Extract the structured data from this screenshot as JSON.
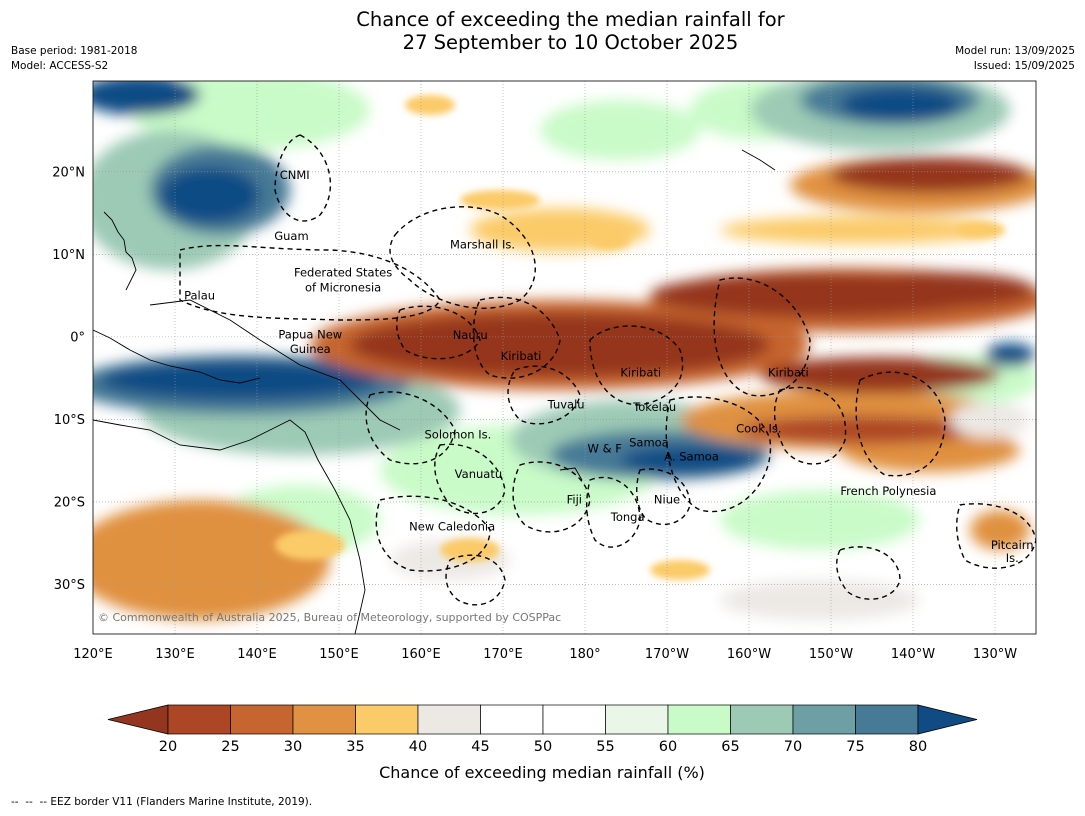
{
  "title": {
    "line1": "Chance of exceeding the median rainfall for",
    "line2": "27 September to 10 October 2025"
  },
  "meta": {
    "base_period": "Base period: 1981-2018",
    "model": "Model: ACCESS-S2",
    "model_run": "Model run: 13/09/2025",
    "issued": "Issued: 15/09/2025"
  },
  "map": {
    "extent": {
      "lon": [
        120,
        235
      ],
      "lat": [
        -36,
        31
      ]
    },
    "x_ticks": [
      {
        "lon": 120,
        "label": "120°E"
      },
      {
        "lon": 130,
        "label": "130°E"
      },
      {
        "lon": 140,
        "label": "140°E"
      },
      {
        "lon": 150,
        "label": "150°E"
      },
      {
        "lon": 160,
        "label": "160°E"
      },
      {
        "lon": 170,
        "label": "170°E"
      },
      {
        "lon": 180,
        "label": "180°"
      },
      {
        "lon": 190,
        "label": "170°W"
      },
      {
        "lon": 200,
        "label": "160°W"
      },
      {
        "lon": 210,
        "label": "150°W"
      },
      {
        "lon": 220,
        "label": "140°W"
      },
      {
        "lon": 230,
        "label": "130°W"
      }
    ],
    "y_ticks": [
      {
        "lat": 20,
        "label": "20°N"
      },
      {
        "lat": 10,
        "label": "10°N"
      },
      {
        "lat": 0,
        "label": "0°"
      },
      {
        "lat": -10,
        "label": "10°S"
      },
      {
        "lat": -20,
        "label": "20°S"
      },
      {
        "lat": -30,
        "label": "30°S"
      }
    ],
    "labels": [
      {
        "text": "CNMI",
        "lon": 144.6,
        "lat": 19.6
      },
      {
        "text": "Guam",
        "lon": 144.2,
        "lat": 12.2
      },
      {
        "text": "Marshall Is.",
        "lon": 167.5,
        "lat": 11.2
      },
      {
        "text": "Federated States",
        "lon": 150.5,
        "lat": 7.8
      },
      {
        "text": "of Micronesia",
        "lon": 150.5,
        "lat": 6.0
      },
      {
        "text": "Palau",
        "lon": 133.0,
        "lat": 5.0
      },
      {
        "text": "Nauru",
        "lon": 166.0,
        "lat": 0.2
      },
      {
        "text": "Papua New",
        "lon": 146.5,
        "lat": 0.3
      },
      {
        "text": "Guinea",
        "lon": 146.5,
        "lat": -1.5
      },
      {
        "text": "Kiribati",
        "lon": 172.2,
        "lat": -2.3
      },
      {
        "text": "Kiribati",
        "lon": 186.8,
        "lat": -4.3
      },
      {
        "text": "Kiribati",
        "lon": 204.8,
        "lat": -4.3
      },
      {
        "text": "Tuvalu",
        "lon": 177.7,
        "lat": -8.2
      },
      {
        "text": "Tokelau",
        "lon": 188.5,
        "lat": -8.5
      },
      {
        "text": "Cook Is.",
        "lon": 201.2,
        "lat": -11.1
      },
      {
        "text": "Solomon Is.",
        "lon": 164.5,
        "lat": -11.8
      },
      {
        "text": "Samoa",
        "lon": 187.8,
        "lat": -12.8
      },
      {
        "text": "W & F",
        "lon": 182.4,
        "lat": -13.5
      },
      {
        "text": "A. Samoa",
        "lon": 193.0,
        "lat": -14.5
      },
      {
        "text": "Vanuatu",
        "lon": 167.0,
        "lat": -16.6
      },
      {
        "text": "French Polynesia",
        "lon": 217.0,
        "lat": -18.7
      },
      {
        "text": "Fiji",
        "lon": 178.7,
        "lat": -19.7
      },
      {
        "text": "Niue",
        "lon": 190.0,
        "lat": -19.7
      },
      {
        "text": "Tonga",
        "lon": 185.2,
        "lat": -21.8
      },
      {
        "text": "New Caledonia",
        "lon": 163.8,
        "lat": -23.0
      },
      {
        "text": "Pitcairn",
        "lon": 232.1,
        "lat": -25.2
      },
      {
        "text": "Is.",
        "lon": 232.1,
        "lat": -26.8
      }
    ],
    "copyright": "© Commonwealth of Australia 2025, Bureau of Meteorology, supported by COSPPac"
  },
  "colorbar": {
    "title": "Chance of exceeding median rainfall (%)",
    "ticks": [
      "20",
      "25",
      "30",
      "35",
      "40",
      "45",
      "50",
      "55",
      "60",
      "65",
      "70",
      "75",
      "80"
    ],
    "under_color": "#94351f",
    "over_color": "#114b84",
    "colors": [
      "#ad4625",
      "#c6652f",
      "#e09141",
      "#fbcb69",
      "#ece9e5",
      "#ffffff",
      "#ffffff",
      "#e9f6e8",
      "#c9fbc8",
      "#9ccab5",
      "#6d9fa5",
      "#477a96"
    ]
  },
  "footer": "--  --  -- EEZ border V11 (Flanders Marine Institute, 2019)."
}
